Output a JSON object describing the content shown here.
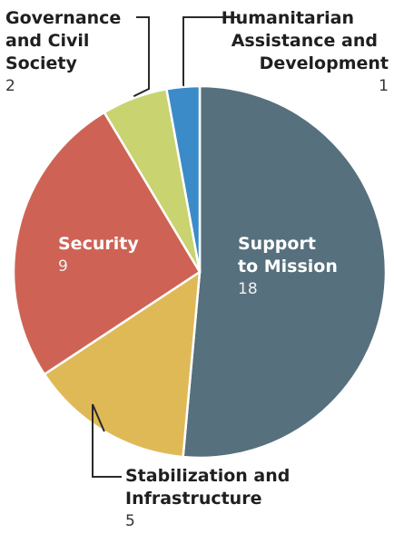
{
  "chart_data": {
    "type": "pie",
    "title": "",
    "colors": {
      "Support to Mission": "#56707d",
      "Stabilization and Infrastructure": "#e0b957",
      "Security": "#ce6355",
      "Governance and Civil Society": "#c9d36f",
      "Humanitarian Assistance and Development": "#3b8bc9"
    },
    "slices": [
      {
        "label": "Support to Mission",
        "label_lines": [
          "Support",
          "to Mission"
        ],
        "value": 18
      },
      {
        "label": "Stabilization and Infrastructure",
        "label_lines": [
          "Stabilization and",
          "Infrastructure"
        ],
        "value": 5
      },
      {
        "label": "Security",
        "label_lines": [
          "Security"
        ],
        "value": 9
      },
      {
        "label": "Governance and Civil Society",
        "label_lines": [
          "Governance",
          "and Civil",
          "Society"
        ],
        "value": 2
      },
      {
        "label": "Humanitarian Assistance and Development",
        "label_lines": [
          "Humanitarian",
          "Assistance and",
          "Development"
        ],
        "value": 1
      }
    ]
  }
}
